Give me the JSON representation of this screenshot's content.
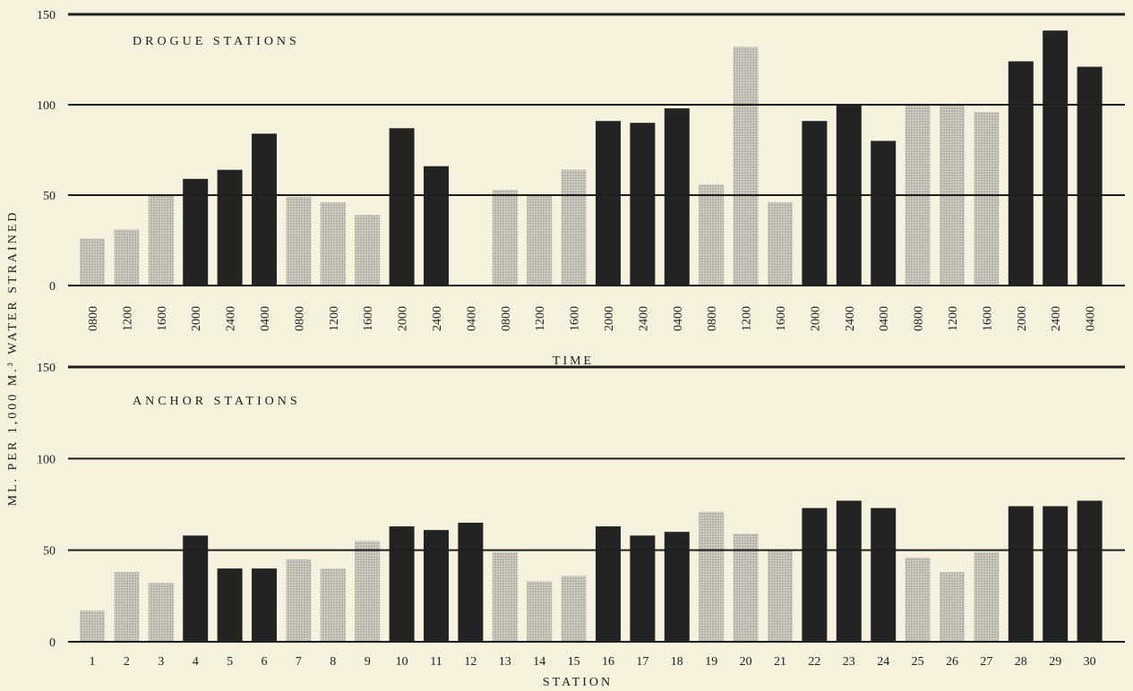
{
  "colors": {
    "background": "#f5f3de",
    "dark_bar": "#232323",
    "light_bar": "#cfcec3",
    "light_bar_dots": "#86867e",
    "grid": "#1e1e1e"
  },
  "shared_ylabel": "ML. PER 1,000 M.³ WATER STRAINED",
  "chart_data": [
    {
      "type": "bar",
      "title": "DROGUE STATIONS",
      "xlabel": "TIME",
      "categories": [
        "0800",
        "1200",
        "1600",
        "2000",
        "2400",
        "0400",
        "0800",
        "1200",
        "1600",
        "2000",
        "2400",
        "0400",
        "0800",
        "1200",
        "1600",
        "2000",
        "2400",
        "0400",
        "0800",
        "1200",
        "1600",
        "2000",
        "2400",
        "0400",
        "0800",
        "1200",
        "1600",
        "2000",
        "2400",
        "0400"
      ],
      "values": [
        26,
        31,
        50,
        59,
        64,
        84,
        49,
        46,
        39,
        87,
        66,
        null,
        53,
        50,
        64,
        91,
        90,
        98,
        56,
        132,
        46,
        91,
        100,
        80,
        100,
        100,
        96,
        124,
        141,
        121
      ],
      "shade": [
        "light",
        "light",
        "light",
        "dark",
        "dark",
        "dark",
        "light",
        "light",
        "light",
        "dark",
        "dark",
        "dark",
        "light",
        "light",
        "light",
        "dark",
        "dark",
        "dark",
        "light",
        "light",
        "light",
        "dark",
        "dark",
        "dark",
        "light",
        "light",
        "light",
        "dark",
        "dark",
        "dark"
      ],
      "ylim": [
        0,
        150
      ],
      "yticks": [
        0,
        50,
        100,
        150
      ],
      "grid": true
    },
    {
      "type": "bar",
      "title": "ANCHOR STATIONS",
      "xlabel": "STATION",
      "categories": [
        "1",
        "2",
        "3",
        "4",
        "5",
        "6",
        "7",
        "8",
        "9",
        "10",
        "11",
        "12",
        "13",
        "14",
        "15",
        "16",
        "17",
        "18",
        "19",
        "20",
        "21",
        "22",
        "23",
        "24",
        "25",
        "26",
        "27",
        "28",
        "29",
        "30"
      ],
      "values": [
        17,
        38,
        32,
        58,
        40,
        40,
        45,
        40,
        55,
        63,
        61,
        65,
        49,
        33,
        36,
        63,
        58,
        60,
        71,
        59,
        50,
        73,
        77,
        73,
        46,
        38,
        49,
        74,
        74,
        77
      ],
      "shade": [
        "light",
        "light",
        "light",
        "dark",
        "dark",
        "dark",
        "light",
        "light",
        "light",
        "dark",
        "dark",
        "dark",
        "light",
        "light",
        "light",
        "dark",
        "dark",
        "dark",
        "light",
        "light",
        "light",
        "dark",
        "dark",
        "dark",
        "light",
        "light",
        "light",
        "dark",
        "dark",
        "dark"
      ],
      "ylim": [
        0,
        150
      ],
      "yticks": [
        0,
        50,
        100,
        150
      ],
      "grid": true
    }
  ]
}
